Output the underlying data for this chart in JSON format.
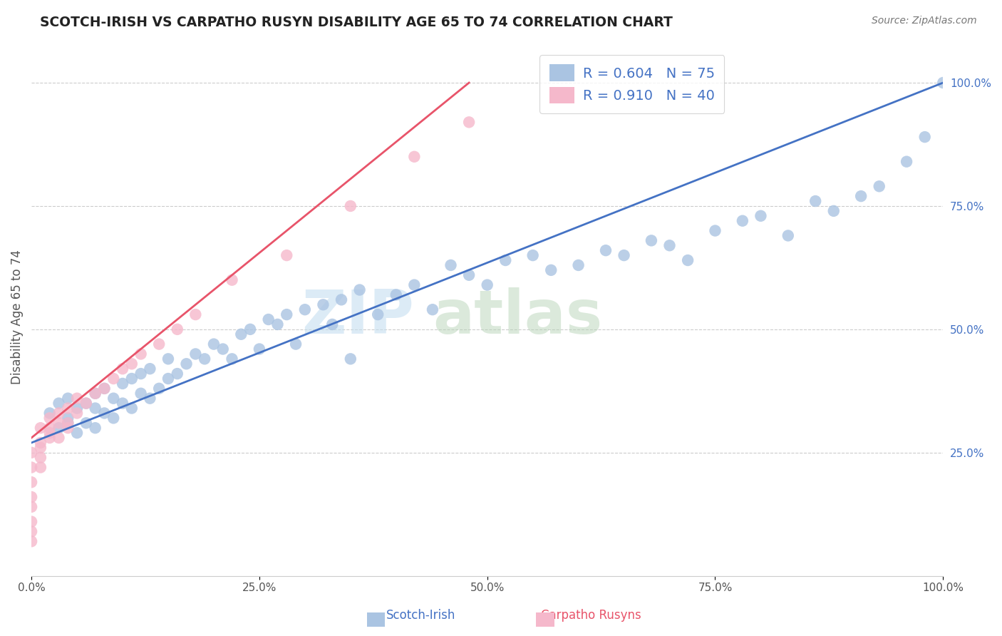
{
  "title": "SCOTCH-IRISH VS CARPATHO RUSYN DISABILITY AGE 65 TO 74 CORRELATION CHART",
  "source": "Source: ZipAtlas.com",
  "ylabel": "Disability Age 65 to 74",
  "scotch_irish_R": 0.604,
  "scotch_irish_N": 75,
  "carpatho_rusyn_R": 0.91,
  "carpatho_rusyn_N": 40,
  "scotch_irish_color": "#aac4e2",
  "carpatho_rusyn_color": "#f5b8cb",
  "scotch_irish_line_color": "#4472c4",
  "carpatho_rusyn_line_color": "#e8546a",
  "background_color": "#ffffff",
  "grid_color": "#cccccc",
  "title_color": "#222222",
  "yticklabel_color": "#4472c4",
  "xticklabel_color": "#555555",
  "watermark_zip_color": "#c8dff0",
  "watermark_atlas_color": "#d0e8c0",
  "legend_text_color": "#4472c4",
  "legend_border_color": "#cccccc",
  "scotch_irish_line_x0": 0.0,
  "scotch_irish_line_y0": 0.27,
  "scotch_irish_line_x1": 1.0,
  "scotch_irish_line_y1": 1.0,
  "carpatho_rusyn_line_x0": 0.0,
  "carpatho_rusyn_line_y0": 0.28,
  "carpatho_rusyn_line_x1": 0.48,
  "carpatho_rusyn_line_y1": 1.0,
  "xlim": [
    0,
    1.0
  ],
  "ylim": [
    0,
    1.05
  ],
  "xticks": [
    0.0,
    0.25,
    0.5,
    0.75,
    1.0
  ],
  "xtick_labels": [
    "0.0%",
    "25.0%",
    "50.0%",
    "75.0%",
    "100.0%"
  ],
  "yticks": [
    0.25,
    0.5,
    0.75,
    1.0
  ],
  "ytick_labels": [
    "25.0%",
    "50.0%",
    "75.0%",
    "100.0%"
  ],
  "scotch_irish_x": [
    0.02,
    0.03,
    0.03,
    0.04,
    0.04,
    0.04,
    0.05,
    0.05,
    0.06,
    0.06,
    0.07,
    0.07,
    0.07,
    0.08,
    0.08,
    0.09,
    0.09,
    0.1,
    0.1,
    0.11,
    0.11,
    0.12,
    0.12,
    0.13,
    0.13,
    0.14,
    0.15,
    0.15,
    0.16,
    0.17,
    0.18,
    0.19,
    0.2,
    0.21,
    0.22,
    0.23,
    0.24,
    0.25,
    0.26,
    0.27,
    0.28,
    0.29,
    0.3,
    0.32,
    0.33,
    0.34,
    0.35,
    0.36,
    0.38,
    0.4,
    0.42,
    0.44,
    0.46,
    0.48,
    0.5,
    0.52,
    0.55,
    0.57,
    0.6,
    0.63,
    0.65,
    0.68,
    0.7,
    0.72,
    0.75,
    0.78,
    0.8,
    0.83,
    0.86,
    0.88,
    0.91,
    0.93,
    0.96,
    0.98,
    1.0
  ],
  "scotch_irish_y": [
    0.33,
    0.3,
    0.35,
    0.31,
    0.36,
    0.32,
    0.29,
    0.34,
    0.31,
    0.35,
    0.3,
    0.34,
    0.37,
    0.33,
    0.38,
    0.32,
    0.36,
    0.35,
    0.39,
    0.34,
    0.4,
    0.37,
    0.41,
    0.36,
    0.42,
    0.38,
    0.4,
    0.44,
    0.41,
    0.43,
    0.45,
    0.44,
    0.47,
    0.46,
    0.44,
    0.49,
    0.5,
    0.46,
    0.52,
    0.51,
    0.53,
    0.47,
    0.54,
    0.55,
    0.51,
    0.56,
    0.44,
    0.58,
    0.53,
    0.57,
    0.59,
    0.54,
    0.63,
    0.61,
    0.59,
    0.64,
    0.65,
    0.62,
    0.63,
    0.66,
    0.65,
    0.68,
    0.67,
    0.64,
    0.7,
    0.72,
    0.73,
    0.69,
    0.76,
    0.74,
    0.77,
    0.79,
    0.84,
    0.89,
    1.0
  ],
  "carpatho_rusyn_x": [
    0.0,
    0.0,
    0.0,
    0.0,
    0.0,
    0.0,
    0.0,
    0.0,
    0.01,
    0.01,
    0.01,
    0.01,
    0.01,
    0.02,
    0.02,
    0.02,
    0.02,
    0.03,
    0.03,
    0.03,
    0.04,
    0.04,
    0.04,
    0.05,
    0.05,
    0.06,
    0.07,
    0.08,
    0.09,
    0.1,
    0.11,
    0.12,
    0.14,
    0.16,
    0.18,
    0.22,
    0.28,
    0.35,
    0.42,
    0.48
  ],
  "carpatho_rusyn_y": [
    0.07,
    0.09,
    0.11,
    0.14,
    0.16,
    0.19,
    0.22,
    0.25,
    0.22,
    0.24,
    0.27,
    0.3,
    0.26,
    0.28,
    0.3,
    0.32,
    0.29,
    0.31,
    0.28,
    0.33,
    0.3,
    0.34,
    0.31,
    0.33,
    0.36,
    0.35,
    0.37,
    0.38,
    0.4,
    0.42,
    0.43,
    0.45,
    0.47,
    0.5,
    0.53,
    0.6,
    0.65,
    0.75,
    0.85,
    0.92
  ]
}
